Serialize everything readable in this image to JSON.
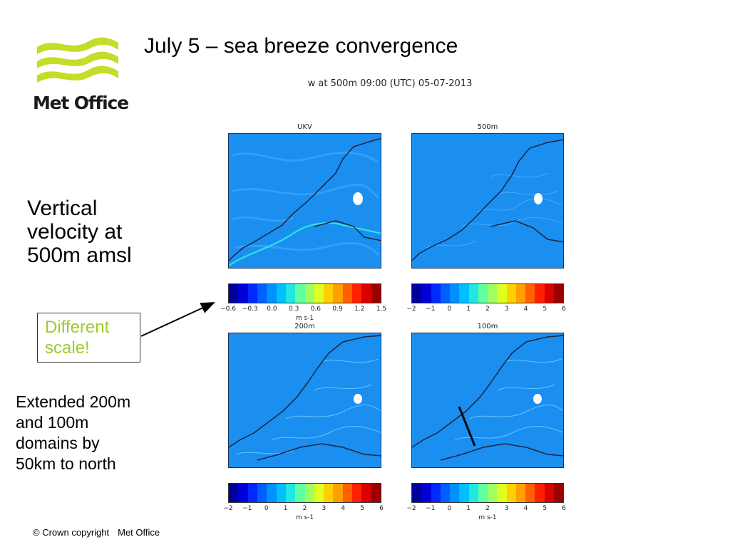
{
  "logo": {
    "text": "Met Office",
    "icon": "met-office-wave-logo"
  },
  "slide_title": "July 5 – sea breeze convergence",
  "figure_title": "w at 500m 09:00 (UTC) 05-07-2013",
  "left_text": [
    "Vertical",
    "velocity at",
    "500m amsl"
  ],
  "callout": {
    "lines": [
      "Different",
      "scale!"
    ],
    "color": "#9ccc2a"
  },
  "note": [
    "Extended 200m",
    "and 100m",
    "domains by",
    "50km to north"
  ],
  "copyright": {
    "owner": "© Crown copyright",
    "org": "Met Office"
  },
  "panels": [
    {
      "label": "UKV"
    },
    {
      "label": "500m"
    },
    {
      "label": "200m"
    },
    {
      "label": "100m"
    }
  ],
  "colorbars": [
    {
      "ticks": [
        "−0.6",
        "−0.3",
        "0.0",
        "0.3",
        "0.6",
        "0.9",
        "1.2",
        "1.5"
      ],
      "unit": "m s-1"
    },
    {
      "ticks": [
        "−2",
        "−1",
        "0",
        "1",
        "2",
        "3",
        "4",
        "5",
        "6"
      ],
      "unit": ""
    },
    {
      "ticks": [
        "−2",
        "−1",
        "0",
        "1",
        "2",
        "3",
        "4",
        "5",
        "6"
      ],
      "unit": "m s-1"
    },
    {
      "ticks": [
        "−2",
        "−1",
        "0",
        "1",
        "2",
        "3",
        "4",
        "5",
        "6"
      ],
      "unit": "m s-1"
    }
  ],
  "colors": {
    "map_background": "#1a8ff0",
    "coastline": "#1c2440",
    "colormap": [
      "#00009a",
      "#0000d8",
      "#0028ff",
      "#0060ff",
      "#0090ff",
      "#00c0ff",
      "#20e8e0",
      "#60ffa0",
      "#a0ff60",
      "#e0ff20",
      "#ffd000",
      "#ffa000",
      "#ff6000",
      "#ff2000",
      "#d80000",
      "#9a0000"
    ]
  }
}
